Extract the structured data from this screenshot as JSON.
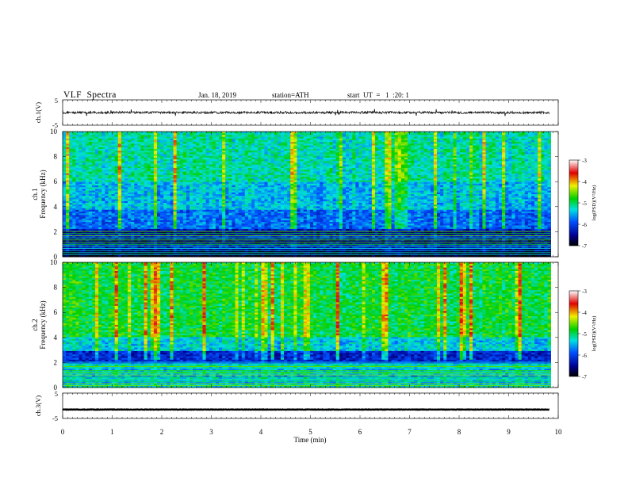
{
  "header": {
    "title": "VLF  Spectra",
    "date": "Jan. 18, 2019",
    "station": "station=ATH",
    "start": "start  UT  =   1  :20: 1"
  },
  "chart_data": [
    {
      "type": "line",
      "panel": "ch1-waveform",
      "ylabel": "ch.1(V)",
      "ylim": [
        -5,
        5
      ],
      "yticks": [
        "5",
        "-5"
      ],
      "xlim": [
        0,
        10
      ],
      "baseline": 0,
      "color": "#000000"
    },
    {
      "type": "heatmap",
      "panel": "ch1-spectrogram",
      "ylabel_line1": "ch.1",
      "ylabel_line2": "Frequency  (kHz)",
      "ylim": [
        0,
        10
      ],
      "yticks": [
        "0",
        "2",
        "4",
        "6",
        "8",
        "10"
      ],
      "xlim": [
        0,
        9.85
      ],
      "colorbar": {
        "label": "log(PSD)(V²/Hz)",
        "range": [
          -7,
          -3
        ],
        "ticks": [
          "-3",
          "-4",
          "-5",
          "-6",
          "-7"
        ]
      }
    },
    {
      "type": "heatmap",
      "panel": "ch2-spectrogram",
      "ylabel_line1": "ch.2",
      "ylabel_line2": "Frequency  (kHz)",
      "ylim": [
        0,
        10
      ],
      "yticks": [
        "0",
        "2",
        "4",
        "6",
        "8",
        "10"
      ],
      "xlim": [
        0,
        9.85
      ],
      "colorbar": {
        "label": "log(PSD)(V²/Hz)",
        "range": [
          -7,
          -3
        ],
        "ticks": [
          "-3",
          "-4",
          "-5",
          "-6",
          "-7"
        ]
      }
    },
    {
      "type": "line",
      "panel": "ch3-waveform",
      "ylabel": "ch.3(V)",
      "ylim": [
        -5,
        5
      ],
      "yticks": [
        "5",
        "-5"
      ],
      "xlim": [
        0,
        10
      ],
      "baseline": -1.5,
      "color": "#000000"
    }
  ],
  "xaxis": {
    "label": "Time  (min)",
    "ticks": [
      "0",
      "1",
      "2",
      "3",
      "4",
      "5",
      "6",
      "7",
      "8",
      "9",
      "10"
    ],
    "range": [
      0,
      10
    ]
  }
}
